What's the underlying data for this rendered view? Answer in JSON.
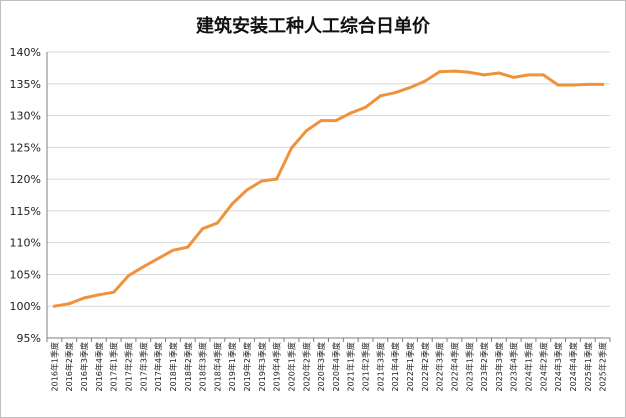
{
  "chart_data": {
    "type": "line",
    "title": "建筑安装工种人工综合日单价",
    "xlabel": "",
    "ylabel": "",
    "ylim": [
      95,
      140
    ],
    "yticks": [
      "95%",
      "100%",
      "105%",
      "110%",
      "115%",
      "120%",
      "125%",
      "130%",
      "135%",
      "140%"
    ],
    "grid": true,
    "legend": "none",
    "line_color": "#F0923A",
    "categories": [
      "2016年1季度",
      "2016年2季度",
      "2016年3季度",
      "2016年4季度",
      "2017年1季度",
      "2017年2季度",
      "2017年3季度",
      "2017年4季度",
      "2018年1季度",
      "2018年2季度",
      "2018年3季度",
      "2018年4季度",
      "2019年1季度",
      "2019年2季度",
      "2019年3季度",
      "2019年4季度",
      "2020年1季度",
      "2020年2季度",
      "2020年3季度",
      "2020年4季度",
      "2021年1季度",
      "2021年2季度",
      "2021年3季度",
      "2021年4季度",
      "2022年1季度",
      "2022年2季度",
      "2022年3季度",
      "2022年4季度",
      "2023年1季度",
      "2023年2季度",
      "2023年3季度",
      "2023年4季度",
      "2024年1季度",
      "2024年2季度",
      "2024年3季度",
      "2024年4季度",
      "2025年1季度",
      "2025年2季度"
    ],
    "values": [
      100.0,
      100.4,
      101.3,
      101.8,
      102.2,
      104.8,
      106.2,
      107.5,
      108.8,
      109.3,
      112.2,
      113.1,
      116.1,
      118.3,
      119.7,
      120.0,
      124.9,
      127.6,
      129.2,
      129.2,
      130.4,
      131.3,
      133.1,
      133.6,
      134.4,
      135.4,
      136.9,
      137.0,
      136.8,
      136.4,
      136.7,
      136.0,
      136.4,
      136.4,
      134.8,
      134.8,
      134.9,
      134.9
    ]
  }
}
